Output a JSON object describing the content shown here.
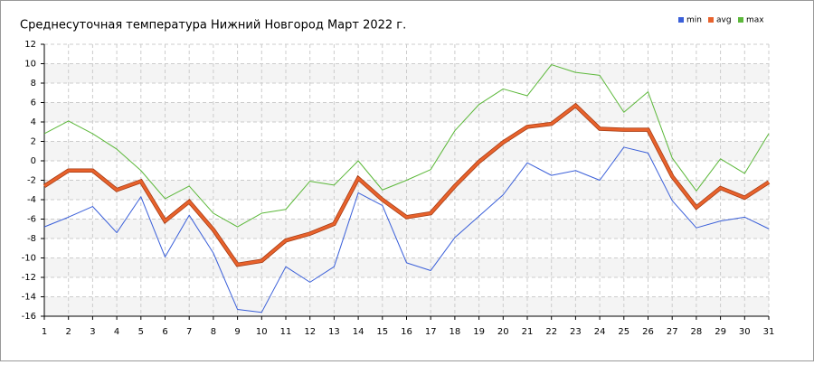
{
  "chart_data": {
    "type": "line",
    "title": "Среднесуточная температура Нижний Новгород  Март 2022 г.",
    "x": [
      1,
      2,
      3,
      4,
      5,
      6,
      7,
      8,
      9,
      10,
      11,
      12,
      13,
      14,
      15,
      16,
      17,
      18,
      19,
      20,
      21,
      22,
      23,
      24,
      25,
      26,
      27,
      28,
      29,
      30,
      31
    ],
    "xlim": [
      1,
      31
    ],
    "xticks": [
      1,
      2,
      3,
      4,
      5,
      6,
      7,
      8,
      9,
      10,
      11,
      12,
      13,
      14,
      15,
      16,
      17,
      18,
      19,
      20,
      21,
      22,
      23,
      24,
      25,
      26,
      27,
      28,
      29,
      30,
      31
    ],
    "ylim": [
      -16,
      12
    ],
    "yticks": [
      -16,
      -14,
      -12,
      -10,
      -8,
      -6,
      -4,
      -2,
      0,
      2,
      4,
      6,
      8,
      10,
      12
    ],
    "grid": true,
    "legend": "top-right",
    "series": [
      {
        "name": "min",
        "color": "#3a5fd9",
        "values": [
          -6.8,
          -5.8,
          -4.7,
          -7.4,
          -3.7,
          -9.9,
          -5.6,
          -9.5,
          -15.3,
          -15.6,
          -10.9,
          -12.5,
          -10.9,
          -3.3,
          -4.6,
          -10.5,
          -11.3,
          -7.9,
          -5.7,
          -3.5,
          -0.2,
          -1.5,
          -1.0,
          -2.0,
          1.4,
          0.8,
          -4.1,
          -6.9,
          -6.2,
          -5.8,
          -7.0
        ]
      },
      {
        "name": "avg",
        "color": "#e8622c",
        "values": [
          -2.6,
          -1.0,
          -1.0,
          -3.0,
          -2.1,
          -6.2,
          -4.2,
          -7.1,
          -10.7,
          -10.3,
          -8.2,
          -7.5,
          -6.5,
          -1.8,
          -4.0,
          -5.8,
          -5.4,
          -2.6,
          -0.1,
          1.9,
          3.5,
          3.8,
          5.7,
          3.3,
          3.2,
          3.2,
          -1.6,
          -4.8,
          -2.8,
          -3.8,
          -2.2
        ]
      },
      {
        "name": "max",
        "color": "#5cb83a",
        "values": [
          2.8,
          4.1,
          2.8,
          1.2,
          -1.0,
          -3.9,
          -2.6,
          -5.4,
          -6.8,
          -5.4,
          -5.0,
          -2.1,
          -2.5,
          0.0,
          -3.0,
          -2.0,
          -0.9,
          3.1,
          5.8,
          7.4,
          6.7,
          9.9,
          9.1,
          8.8,
          5.0,
          7.1,
          0.3,
          -3.1,
          0.2,
          -1.3,
          2.8
        ]
      }
    ]
  }
}
